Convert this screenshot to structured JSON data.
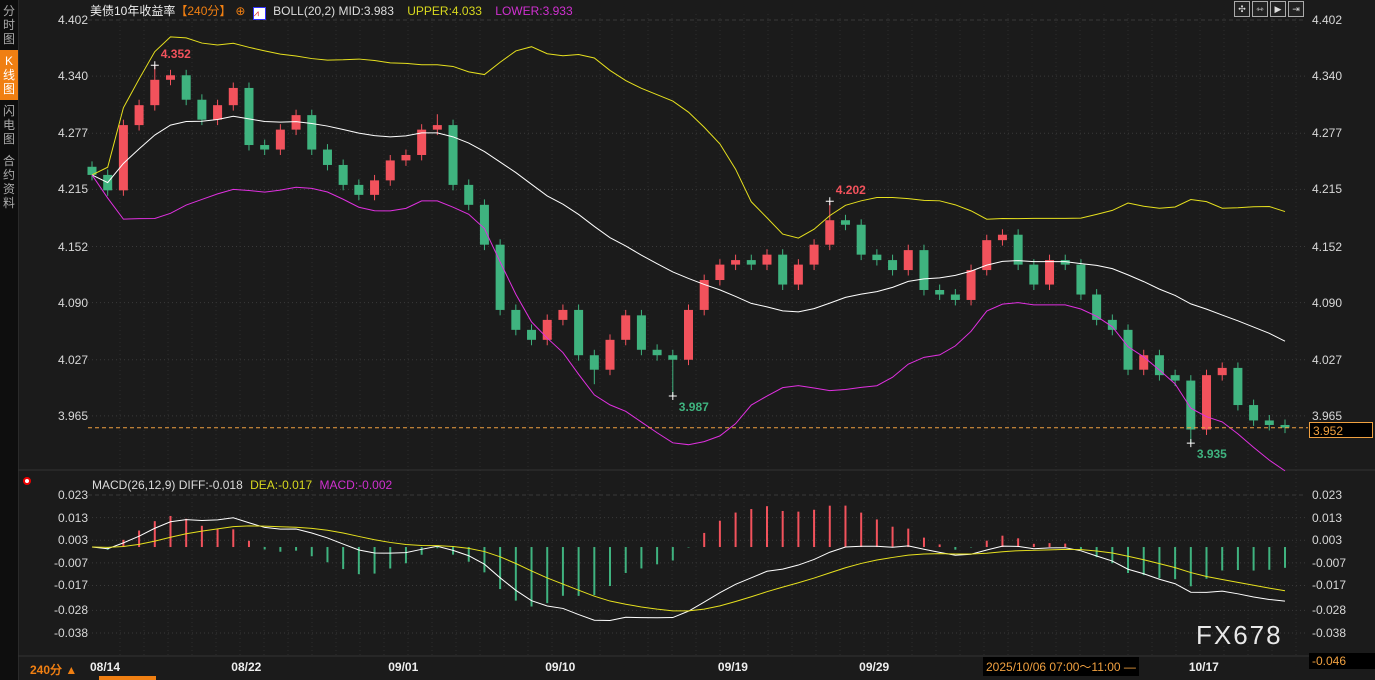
{
  "sidebar": {
    "items": [
      {
        "label": "分时图",
        "active": false
      },
      {
        "label": "K线图",
        "active": true
      },
      {
        "label": "闪电图",
        "active": false
      },
      {
        "label": "合约资料",
        "active": false
      }
    ]
  },
  "header": {
    "title": "美债10年收益率",
    "period": "【240分】",
    "zoom_icon": "target-icon",
    "boll_icon": "indicator-chart-icon",
    "boll": "BOLL(20,2) MID:3.983",
    "upper": "UPPER:4.033",
    "lower": "LOWER:3.933"
  },
  "tools": [
    {
      "icon": "crosshair-icon",
      "glyph": "✣"
    },
    {
      "icon": "fit-range-icon",
      "glyph": "⇿"
    },
    {
      "icon": "play-range-icon",
      "glyph": "▶"
    },
    {
      "icon": "move-right-icon",
      "glyph": "⇥"
    }
  ],
  "macd_legend": {
    "title": "MACD(26,12,9)",
    "diff": "DIFF:-0.018",
    "dea": "DEA:-0.017",
    "macd": "MACD:-0.002"
  },
  "footer": {
    "period": "240分 ▲",
    "crosshair_time": "2025/10/06 07:00～11:00 —",
    "current_price": "3.952",
    "macd_min": "-0.046",
    "watermark": "FX678"
  },
  "colors": {
    "up": "#f2525c",
    "down": "#3fb37f",
    "mid": "#ffffff",
    "upper": "#e6e01e",
    "lower": "#e030e0",
    "diff": "#ffffff",
    "dea": "#e6e01e",
    "accent": "#f07f12"
  },
  "chart_data": [
    {
      "type": "candlestick",
      "title": "美债10年收益率",
      "interval": "240分",
      "y_ticks": [
        "4.402",
        "4.340",
        "4.277",
        "4.215",
        "4.152",
        "4.090",
        "4.027",
        "3.965"
      ],
      "ylim": [
        3.925,
        4.412
      ],
      "x_labels": [
        {
          "label": "08/14",
          "index": 0
        },
        {
          "label": "08/22",
          "index": 9
        },
        {
          "label": "09/01",
          "index": 19
        },
        {
          "label": "09/10",
          "index": 29
        },
        {
          "label": "09/19",
          "index": 40
        },
        {
          "label": "09/29",
          "index": 49
        },
        {
          "label": "10/17",
          "index": 70
        }
      ],
      "annotations": [
        {
          "label": "4.352",
          "index": 4,
          "value": 4.352,
          "kind": "high"
        },
        {
          "label": "3.987",
          "index": 37,
          "value": 3.987,
          "kind": "low"
        },
        {
          "label": "4.202",
          "index": 47,
          "value": 4.202,
          "kind": "high"
        },
        {
          "label": "3.935",
          "index": 70,
          "value": 3.935,
          "kind": "low"
        }
      ],
      "current_price": 3.952,
      "ohlc": [
        [
          4.24,
          4.246,
          4.225,
          4.231
        ],
        [
          4.231,
          4.237,
          4.208,
          4.214
        ],
        [
          4.214,
          4.292,
          4.208,
          4.286
        ],
        [
          4.286,
          4.314,
          4.28,
          4.308
        ],
        [
          4.308,
          4.352,
          4.302,
          4.336
        ],
        [
          4.336,
          4.347,
          4.33,
          4.341
        ],
        [
          4.341,
          4.347,
          4.308,
          4.314
        ],
        [
          4.314,
          4.32,
          4.286,
          4.292
        ],
        [
          4.292,
          4.314,
          4.286,
          4.308
        ],
        [
          4.308,
          4.333,
          4.302,
          4.327
        ],
        [
          4.327,
          4.333,
          4.258,
          4.264
        ],
        [
          4.264,
          4.27,
          4.253,
          4.259
        ],
        [
          4.259,
          4.287,
          4.253,
          4.281
        ],
        [
          4.281,
          4.303,
          4.275,
          4.297
        ],
        [
          4.297,
          4.303,
          4.253,
          4.259
        ],
        [
          4.259,
          4.265,
          4.236,
          4.242
        ],
        [
          4.242,
          4.248,
          4.214,
          4.22
        ],
        [
          4.22,
          4.226,
          4.203,
          4.209
        ],
        [
          4.209,
          4.231,
          4.203,
          4.225
        ],
        [
          4.225,
          4.253,
          4.219,
          4.247
        ],
        [
          4.247,
          4.259,
          4.241,
          4.253
        ],
        [
          4.253,
          4.287,
          4.247,
          4.281
        ],
        [
          4.281,
          4.298,
          4.275,
          4.286
        ],
        [
          4.286,
          4.292,
          4.214,
          4.22
        ],
        [
          4.22,
          4.226,
          4.192,
          4.198
        ],
        [
          4.198,
          4.204,
          4.148,
          4.154
        ],
        [
          4.154,
          4.16,
          4.076,
          4.082
        ],
        [
          4.082,
          4.088,
          4.054,
          4.06
        ],
        [
          4.06,
          4.066,
          4.043,
          4.049
        ],
        [
          4.049,
          4.077,
          4.043,
          4.071
        ],
        [
          4.071,
          4.088,
          4.065,
          4.082
        ],
        [
          4.082,
          4.088,
          4.026,
          4.032
        ],
        [
          4.032,
          4.038,
          4.0,
          4.016
        ],
        [
          4.016,
          4.055,
          4.01,
          4.049
        ],
        [
          4.049,
          4.082,
          4.043,
          4.076
        ],
        [
          4.076,
          4.082,
          4.032,
          4.038
        ],
        [
          4.038,
          4.044,
          4.026,
          4.032
        ],
        [
          4.032,
          4.038,
          3.987,
          4.027
        ],
        [
          4.027,
          4.088,
          4.021,
          4.082
        ],
        [
          4.082,
          4.121,
          4.076,
          4.115
        ],
        [
          4.115,
          4.138,
          4.109,
          4.132
        ],
        [
          4.132,
          4.143,
          4.126,
          4.137
        ],
        [
          4.137,
          4.143,
          4.126,
          4.132
        ],
        [
          4.132,
          4.149,
          4.126,
          4.143
        ],
        [
          4.143,
          4.149,
          4.104,
          4.11
        ],
        [
          4.11,
          4.138,
          4.104,
          4.132
        ],
        [
          4.132,
          4.16,
          4.126,
          4.154
        ],
        [
          4.154,
          4.202,
          4.148,
          4.181
        ],
        [
          4.181,
          4.187,
          4.17,
          4.176
        ],
        [
          4.176,
          4.182,
          4.137,
          4.143
        ],
        [
          4.143,
          4.149,
          4.131,
          4.137
        ],
        [
          4.137,
          4.143,
          4.12,
          4.126
        ],
        [
          4.126,
          4.154,
          4.12,
          4.148
        ],
        [
          4.148,
          4.154,
          4.098,
          4.104
        ],
        [
          4.104,
          4.11,
          4.093,
          4.099
        ],
        [
          4.099,
          4.105,
          4.087,
          4.093
        ],
        [
          4.093,
          4.132,
          4.087,
          4.126
        ],
        [
          4.126,
          4.165,
          4.12,
          4.159
        ],
        [
          4.159,
          4.171,
          4.153,
          4.165
        ],
        [
          4.165,
          4.171,
          4.126,
          4.132
        ],
        [
          4.132,
          4.138,
          4.104,
          4.11
        ],
        [
          4.11,
          4.143,
          4.104,
          4.137
        ],
        [
          4.137,
          4.143,
          4.126,
          4.132
        ],
        [
          4.132,
          4.138,
          4.093,
          4.099
        ],
        [
          4.099,
          4.105,
          4.065,
          4.071
        ],
        [
          4.071,
          4.077,
          4.054,
          4.06
        ],
        [
          4.06,
          4.066,
          4.01,
          4.016
        ],
        [
          4.016,
          4.038,
          4.01,
          4.032
        ],
        [
          4.032,
          4.038,
          4.004,
          4.01
        ],
        [
          4.01,
          4.016,
          3.998,
          4.004
        ],
        [
          4.004,
          4.01,
          3.935,
          3.95
        ],
        [
          3.95,
          4.016,
          3.944,
          4.01
        ],
        [
          4.01,
          4.024,
          4.004,
          4.018
        ],
        [
          4.018,
          4.024,
          3.971,
          3.977
        ],
        [
          3.977,
          3.983,
          3.954,
          3.96
        ],
        [
          3.96,
          3.966,
          3.949,
          3.955
        ],
        [
          3.955,
          3.961,
          3.946,
          3.952
        ]
      ],
      "overlays": [
        "BOLL(20,2) MID",
        "UPPER",
        "LOWER"
      ]
    },
    {
      "type": "bar+line",
      "title": "MACD(26,12,9)",
      "y_ticks": [
        "0.023",
        "0.013",
        "0.003",
        "-0.007",
        "-0.017",
        "-0.028",
        "-0.038"
      ],
      "ylim": [
        -0.046,
        0.025
      ],
      "series": [
        {
          "name": "DIFF"
        },
        {
          "name": "DEA"
        },
        {
          "name": "MACD"
        }
      ]
    }
  ]
}
